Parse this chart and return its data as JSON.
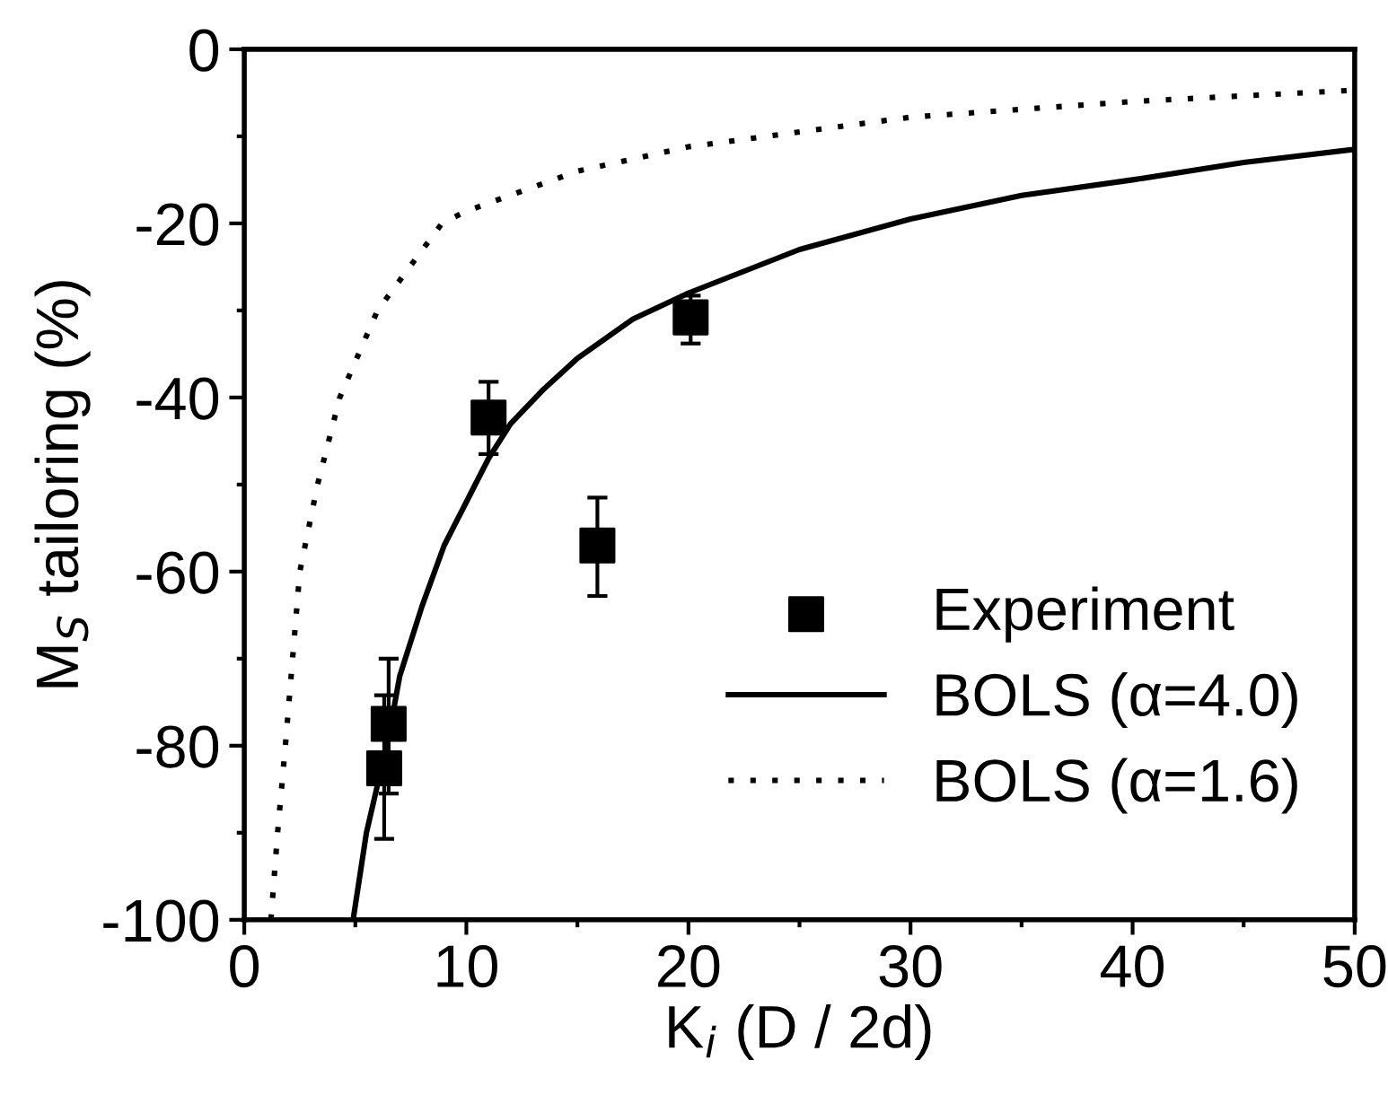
{
  "chart_data": {
    "type": "scatter",
    "xlabel": "K$_{i}$ (D / 2d)",
    "ylabel": "M$_{S}$ tailoring (%)",
    "xlim": [
      0,
      50
    ],
    "ylim": [
      -100,
      0
    ],
    "xticks": [
      0,
      10,
      20,
      30,
      40,
      50
    ],
    "yticks": [
      -100,
      -80,
      -60,
      -40,
      -20,
      0
    ],
    "grid": false,
    "legend": "bottom right",
    "series": [
      {
        "name": "Experiment",
        "color": "#000000",
        "marker": "square",
        "x": [
          6.3,
          6.5,
          11,
          15.9,
          20.1
        ],
        "values": [
          -82.6,
          -77.5,
          -42.3,
          -57,
          -30.8
        ],
        "errors": [
          [
            -90.7,
            -74.2
          ],
          [
            -85.5,
            -70
          ],
          [
            -46.5,
            -38.2
          ],
          [
            -62.8,
            -51.5
          ],
          [
            -33.8,
            -28.3
          ]
        ]
      },
      {
        "name": "BOLS (α=4.0)",
        "type": "line",
        "color": "#000000",
        "line_style": "solid",
        "marker": "none",
        "x": [
          4.9,
          5.5,
          6.5,
          7,
          8,
          9,
          10,
          11,
          12,
          13.5,
          15,
          17.5,
          20,
          25,
          30,
          35,
          40,
          45,
          50
        ],
        "values": [
          -100,
          -90,
          -79,
          -72,
          -64,
          -57,
          -52,
          -47,
          -43,
          -39,
          -35.5,
          -31,
          -28,
          -23,
          -19.5,
          -16.8,
          -15,
          -13,
          -11.5
        ]
      },
      {
        "name": "BOLS (α=1.6)",
        "type": "line",
        "color": "#000000",
        "line_style": "dotted",
        "marker": "none",
        "x": [
          1.2,
          1.5,
          1.85,
          2.5,
          3.3,
          4.3,
          6,
          8.9,
          10,
          15,
          20,
          30,
          40,
          50
        ],
        "values": [
          -100,
          -90,
          -80,
          -60,
          -50,
          -40,
          -30,
          -20,
          -18.6,
          -14,
          -11.2,
          -7.8,
          -6,
          -4.7
        ]
      }
    ]
  }
}
